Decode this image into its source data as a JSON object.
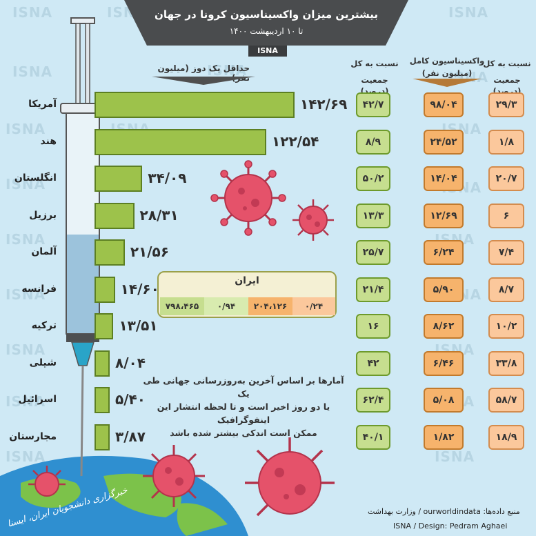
{
  "header": {
    "title": "بیشترین میزان واکسیناسیون کرونا در جهان",
    "subtitle": "تا ۱۰ اردیبهشت ۱۴۰۰",
    "badge": "ISNA"
  },
  "watermark": "ISNA",
  "columns": {
    "bars_header": "حداقل یک دوز (میلیون نفر)",
    "pct_one_dose_header": [
      "نسبت به کل",
      "جمعیت (درصد)"
    ],
    "full_header": [
      "واکسیناسیون کامل",
      "(میلیون نفر)"
    ],
    "pct_full_header": [
      "نسبت به کل",
      "جمعیت (درصد)"
    ]
  },
  "chart_data": {
    "type": "bar",
    "orientation": "horizontal",
    "title": "بیشترین میزان واکسیناسیون کرونا در جهان",
    "subtitle": "تا ۱۰ اردیبهشت ۱۴۰۰",
    "categories": [
      "آمریکا",
      "هند",
      "انگلستان",
      "برزیل",
      "آلمان",
      "فرانسه",
      "ترکیه",
      "شیلی",
      "اسرائیل",
      "مجارستان"
    ],
    "series": [
      {
        "name": "حداقل یک دوز (میلیون نفر)",
        "values": [
          142.69,
          122.54,
          34.09,
          28.31,
          21.56,
          14.6,
          13.51,
          8.04,
          5.4,
          3.87
        ]
      },
      {
        "name": "نسبت به کل جمعیت (درصد)",
        "values": [
          42.7,
          8.9,
          50.2,
          13.3,
          25.7,
          21.4,
          16,
          42,
          62.4,
          40.1
        ]
      },
      {
        "name": "واکسیناسیون کامل (میلیون نفر)",
        "values": [
          98.04,
          24.52,
          14.04,
          12.69,
          6.24,
          5.9,
          8.62,
          6.46,
          5.08,
          1.82
        ]
      },
      {
        "name": "نسبت به کل جمعیت (درصد)",
        "values": [
          29.3,
          1.8,
          20.7,
          6,
          7.4,
          8.7,
          10.2,
          33.8,
          58.7,
          18.9
        ]
      }
    ],
    "value_labels": {
      "one_dose": [
        "۱۴۲/۶۹",
        "۱۲۲/۵۴",
        "۳۴/۰۹",
        "۲۸/۳۱",
        "۲۱/۵۶",
        "۱۴/۶۰",
        "۱۳/۵۱",
        "۸/۰۴",
        "۵/۴۰",
        "۳/۸۷"
      ],
      "pct_one_dose": [
        "۴۲/۷",
        "۸/۹",
        "۵۰/۲",
        "۱۳/۳",
        "۲۵/۷",
        "۲۱/۴",
        "۱۶",
        "۴۲",
        "۶۲/۴",
        "۴۰/۱"
      ],
      "full": [
        "۹۸/۰۴",
        "۲۴/۵۲",
        "۱۴/۰۴",
        "۱۲/۶۹",
        "۶/۲۴",
        "۵/۹۰",
        "۸/۶۲",
        "۶/۴۶",
        "۵/۰۸",
        "۱/۸۲"
      ],
      "pct_full": [
        "۲۹/۳",
        "۱/۸",
        "۲۰/۷",
        "۶",
        "۷/۴",
        "۸/۷",
        "۱۰/۲",
        "۳۳/۸",
        "۵۸/۷",
        "۱۸/۹"
      ]
    }
  },
  "iran": {
    "title": "ایران",
    "values": [
      "۷۹۸،۴۶۵",
      "۰/۹۴",
      "۲۰۴،۱۲۶",
      "۰/۲۴"
    ]
  },
  "note": [
    "آمارها بر اساس آخرین به‌روزرسانی جهانی طی یک",
    "یا دو روز اخیر است و تا لحظه انتشار این اینفوگرافیک",
    "ممکن است اندکی بیشتر شده باشد"
  ],
  "footer": {
    "source": "منبع داده‌ها: ourworldindata / وزارت بهداشت",
    "credit": "ISNA / Design: Pedram Aghaei",
    "logo": "خبرگزاری دانشجویان ایران، ایسنا"
  },
  "colors": {
    "background": "#cfe9f5",
    "bar_fill": "#9dc24b",
    "cell_green": "#c6de8f",
    "cell_orange": "#f6b36c",
    "cell_peach": "#fbc89c",
    "virus": "#e5526a",
    "header": "#4a4c4e"
  }
}
